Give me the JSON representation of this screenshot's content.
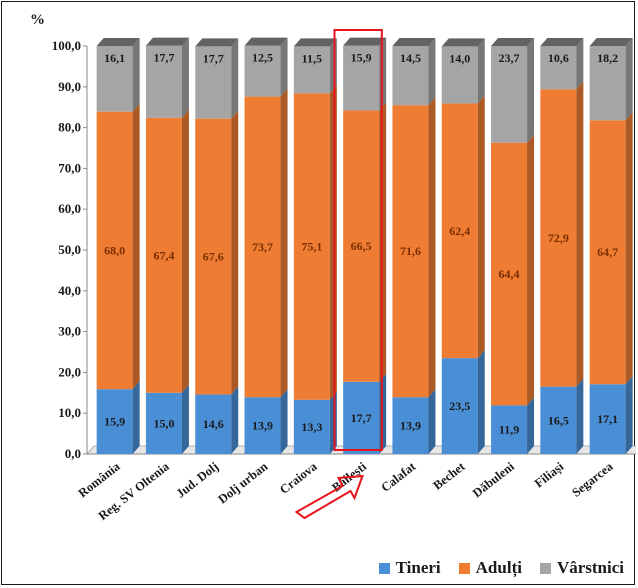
{
  "chart_data": {
    "type": "bar",
    "stacked": true,
    "unit_label": "%",
    "categories": [
      "România",
      "Reg. SV Oltenia",
      "Jud. Dolj",
      "Dolj urban",
      "Craiova",
      "Băilești",
      "Calafat",
      "Bechet",
      "Dăbuleni",
      "Filiași",
      "Segarcea"
    ],
    "series": [
      {
        "name": "Tineri",
        "color": "#4a8fd6",
        "values": [
          15.9,
          15.0,
          14.6,
          13.9,
          13.3,
          17.7,
          13.9,
          23.5,
          11.9,
          16.5,
          17.1
        ]
      },
      {
        "name": "Adulți",
        "color": "#ee7d33",
        "values": [
          68.0,
          67.4,
          67.6,
          73.7,
          75.1,
          66.5,
          71.6,
          62.4,
          64.4,
          72.9,
          64.7
        ]
      },
      {
        "name": "Vârstnici",
        "color": "#a5a5a5",
        "values": [
          16.1,
          17.7,
          17.7,
          12.5,
          11.5,
          15.9,
          14.5,
          14.0,
          23.7,
          10.6,
          18.2
        ]
      }
    ],
    "y_ticks": [
      "0,0",
      "10,0",
      "20,0",
      "30,0",
      "40,0",
      "50,0",
      "60,0",
      "70,0",
      "80,0",
      "90,0",
      "100,0"
    ],
    "ylim": [
      0,
      100
    ],
    "grid": false,
    "legend_position": "bottom-right",
    "highlighted_category": "Băilești",
    "highlight_color": "#e8141b"
  }
}
